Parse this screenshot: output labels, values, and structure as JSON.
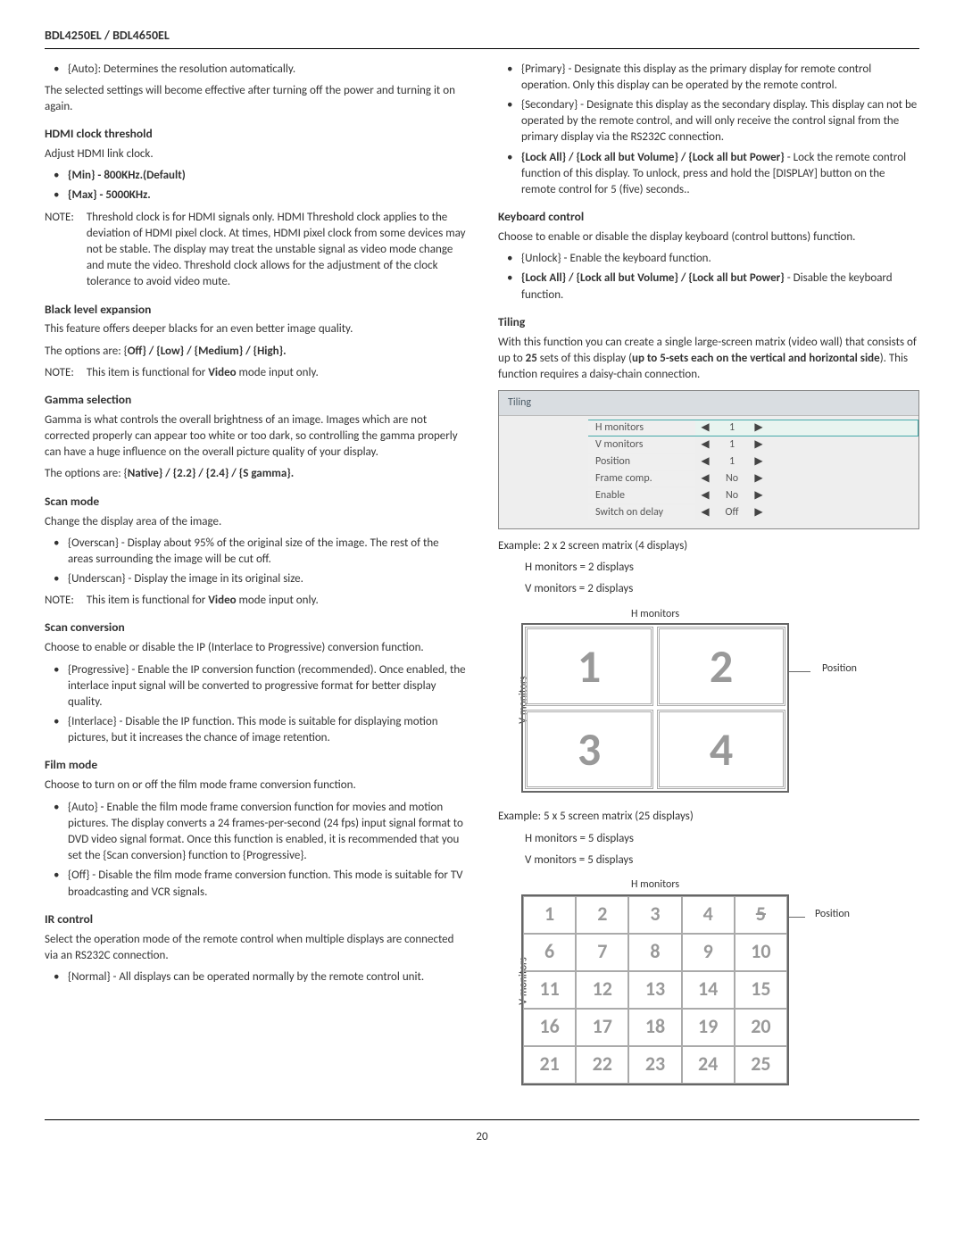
{
  "header": {
    "models": "BDL4250EL / BDL4650EL"
  },
  "left": {
    "auto_bullet": "{Auto}: Determines the resolution automatically.",
    "auto_note": "The selected settings will become effective after turning off the power and turning it on again.",
    "hdmi_title": "HDMI clock threshold",
    "hdmi_text": "Adjust HDMI link clock.",
    "hdmi_min": "{Min} - 800KHz.(Default)",
    "hdmi_max": "{Max} - 5000KHz.",
    "hdmi_note_label": "NOTE:",
    "hdmi_note_body": "Threshold clock is for HDMI signals only.  HDMI Threshold clock applies to the deviation of HDMI pixel clock.   At times, HDMI pixel clock from some devices may not be stable.  The display may treat the unstable signal as video mode change and mute the video. Threshold clock allows for the adjustment of the clock tolerance to avoid video mute.",
    "black_title": "Black level expansion",
    "black_body1": "This feature offers deeper blacks for an even better image quality.",
    "black_body2_pre": "The options are: {",
    "black_opts": "Off} / {Low} / {Medium} / {High}.",
    "black_note_label": "NOTE:",
    "black_note_body_pre": "This item is functional for ",
    "black_note_body_bold": "Video",
    "black_note_body_post": " mode input only.",
    "gamma_title": "Gamma selection",
    "gamma_body": "Gamma is what controls the overall brightness of an image. Images which are not corrected  properly can appear too white or too dark, so controlling the gamma properly can have a huge influence on the overall picture quality of your display.",
    "gamma_opts_pre": "The options are: {",
    "gamma_opts": "Native} / {2.2} / {2.4} / {S gamma}.",
    "scanmode_title": "Scan mode",
    "scanmode_body": "Change the display area of the image.",
    "overscan": "{Overscan} - Display about 95% of the original size of the image. The rest of the areas surrounding the image will be cut off.",
    "underscan": "{Underscan} - Display the image in its original size.",
    "scan_note_label": "NOTE:",
    "scan_note_pre": "This item is functional for ",
    "scan_note_bold": "Video",
    "scan_note_post": " mode input only.",
    "scanconv_title": "Scan conversion",
    "scanconv_body": "Choose to enable or disable the IP (Interlace to Progressive) conversion function.",
    "progressive": "{Progressive} - Enable the IP conversion function (recommended). Once enabled, the interlace input signal will be converted to progressive format for better display quality.",
    "interlace": "{Interlace} - Disable the IP function. This mode is suitable for displaying motion pictures, but it increases the chance of image retention.",
    "film_title": "Film mode",
    "film_body": "Choose to turn on or off the film mode frame conversion function.",
    "film_auto": "{Auto} - Enable the film mode frame conversion function for movies and motion pictures. The display converts a 24 frames-per-second (24 fps) input signal format to DVD video signal format. Once this function is enabled, it is recommended that you set the {Scan conversion} function to {Progressive}.",
    "film_off": "{Off} - Disable the film mode frame conversion function. This mode is suitable for TV broadcasting and VCR signals.",
    "ir_title": "IR control",
    "ir_body": "Select the operation mode of the remote control when multiple displays are connected via an RS232C connection.",
    "ir_normal": "{Normal} - All displays can be operated normally by the remote control unit."
  },
  "right": {
    "primary": "{Primary} - Designate this display as the primary display for remote control operation. Only this display can be operated by the remote control.",
    "secondary": "{Secondary} - Designate this display as the secondary display. This display can not be operated by the remote control, and will only receive the control signal from the primary display via the RS232C connection.",
    "lock_pre": "{Lock All} / {Lock all but Volume} / {Lock all but Power}",
    "lock_post": " - Lock the remote control function of this display. To unlock, press and hold the [DISPLAY] button on the remote control for 5 (five) seconds..",
    "kbd_title": "Keyboard control",
    "kbd_body": "Choose to enable or disable the display keyboard (control buttons) function.",
    "kbd_unlock": "{Unlock} - Enable the keyboard function.",
    "kbd_lock_pre": "{Lock All} / {Lock all but Volume} / {Lock all but Power}",
    "kbd_lock_post": " - Disable the keyboard function.",
    "tiling_title": "Tiling",
    "tiling_body_pre": "With this function you can create a single large-screen matrix (video wall) that consists of up to ",
    "tiling_body_bold1": "25",
    "tiling_body_mid": " sets of this display (",
    "tiling_body_bold2": "up to 5-sets each on the vertical and horizontal side",
    "tiling_body_post": "). This function requires a daisy-chain connection.",
    "osd": {
      "title": "Tiling",
      "rows": [
        {
          "label": "H monitors",
          "value": "1",
          "selected": true
        },
        {
          "label": "V monitors",
          "value": "1"
        },
        {
          "label": "Position",
          "value": "1"
        },
        {
          "label": "Frame comp.",
          "value": "No"
        },
        {
          "label": "Enable",
          "value": "No"
        },
        {
          "label": "Switch on delay",
          "value": "Off"
        }
      ]
    },
    "ex2_title": "Example: 2 x 2 screen matrix (4 displays)",
    "ex2_h": "H monitors = 2 displays",
    "ex2_v": "V monitors = 2 displays",
    "ex5_title": "Example: 5 x 5 screen matrix (25 displays)",
    "ex5_h": "H monitors = 5 displays",
    "ex5_v": "V monitors = 5 displays",
    "h_label": "H monitors",
    "v_label": "V monitors",
    "pos_label": "Position",
    "m2": [
      "1",
      "2",
      "3",
      "4"
    ],
    "m5": [
      "1",
      "2",
      "3",
      "4",
      "5",
      "6",
      "7",
      "8",
      "9",
      "10",
      "11",
      "12",
      "13",
      "14",
      "15",
      "16",
      "17",
      "18",
      "19",
      "20",
      "21",
      "22",
      "23",
      "24",
      "25"
    ]
  },
  "page_number": "20"
}
